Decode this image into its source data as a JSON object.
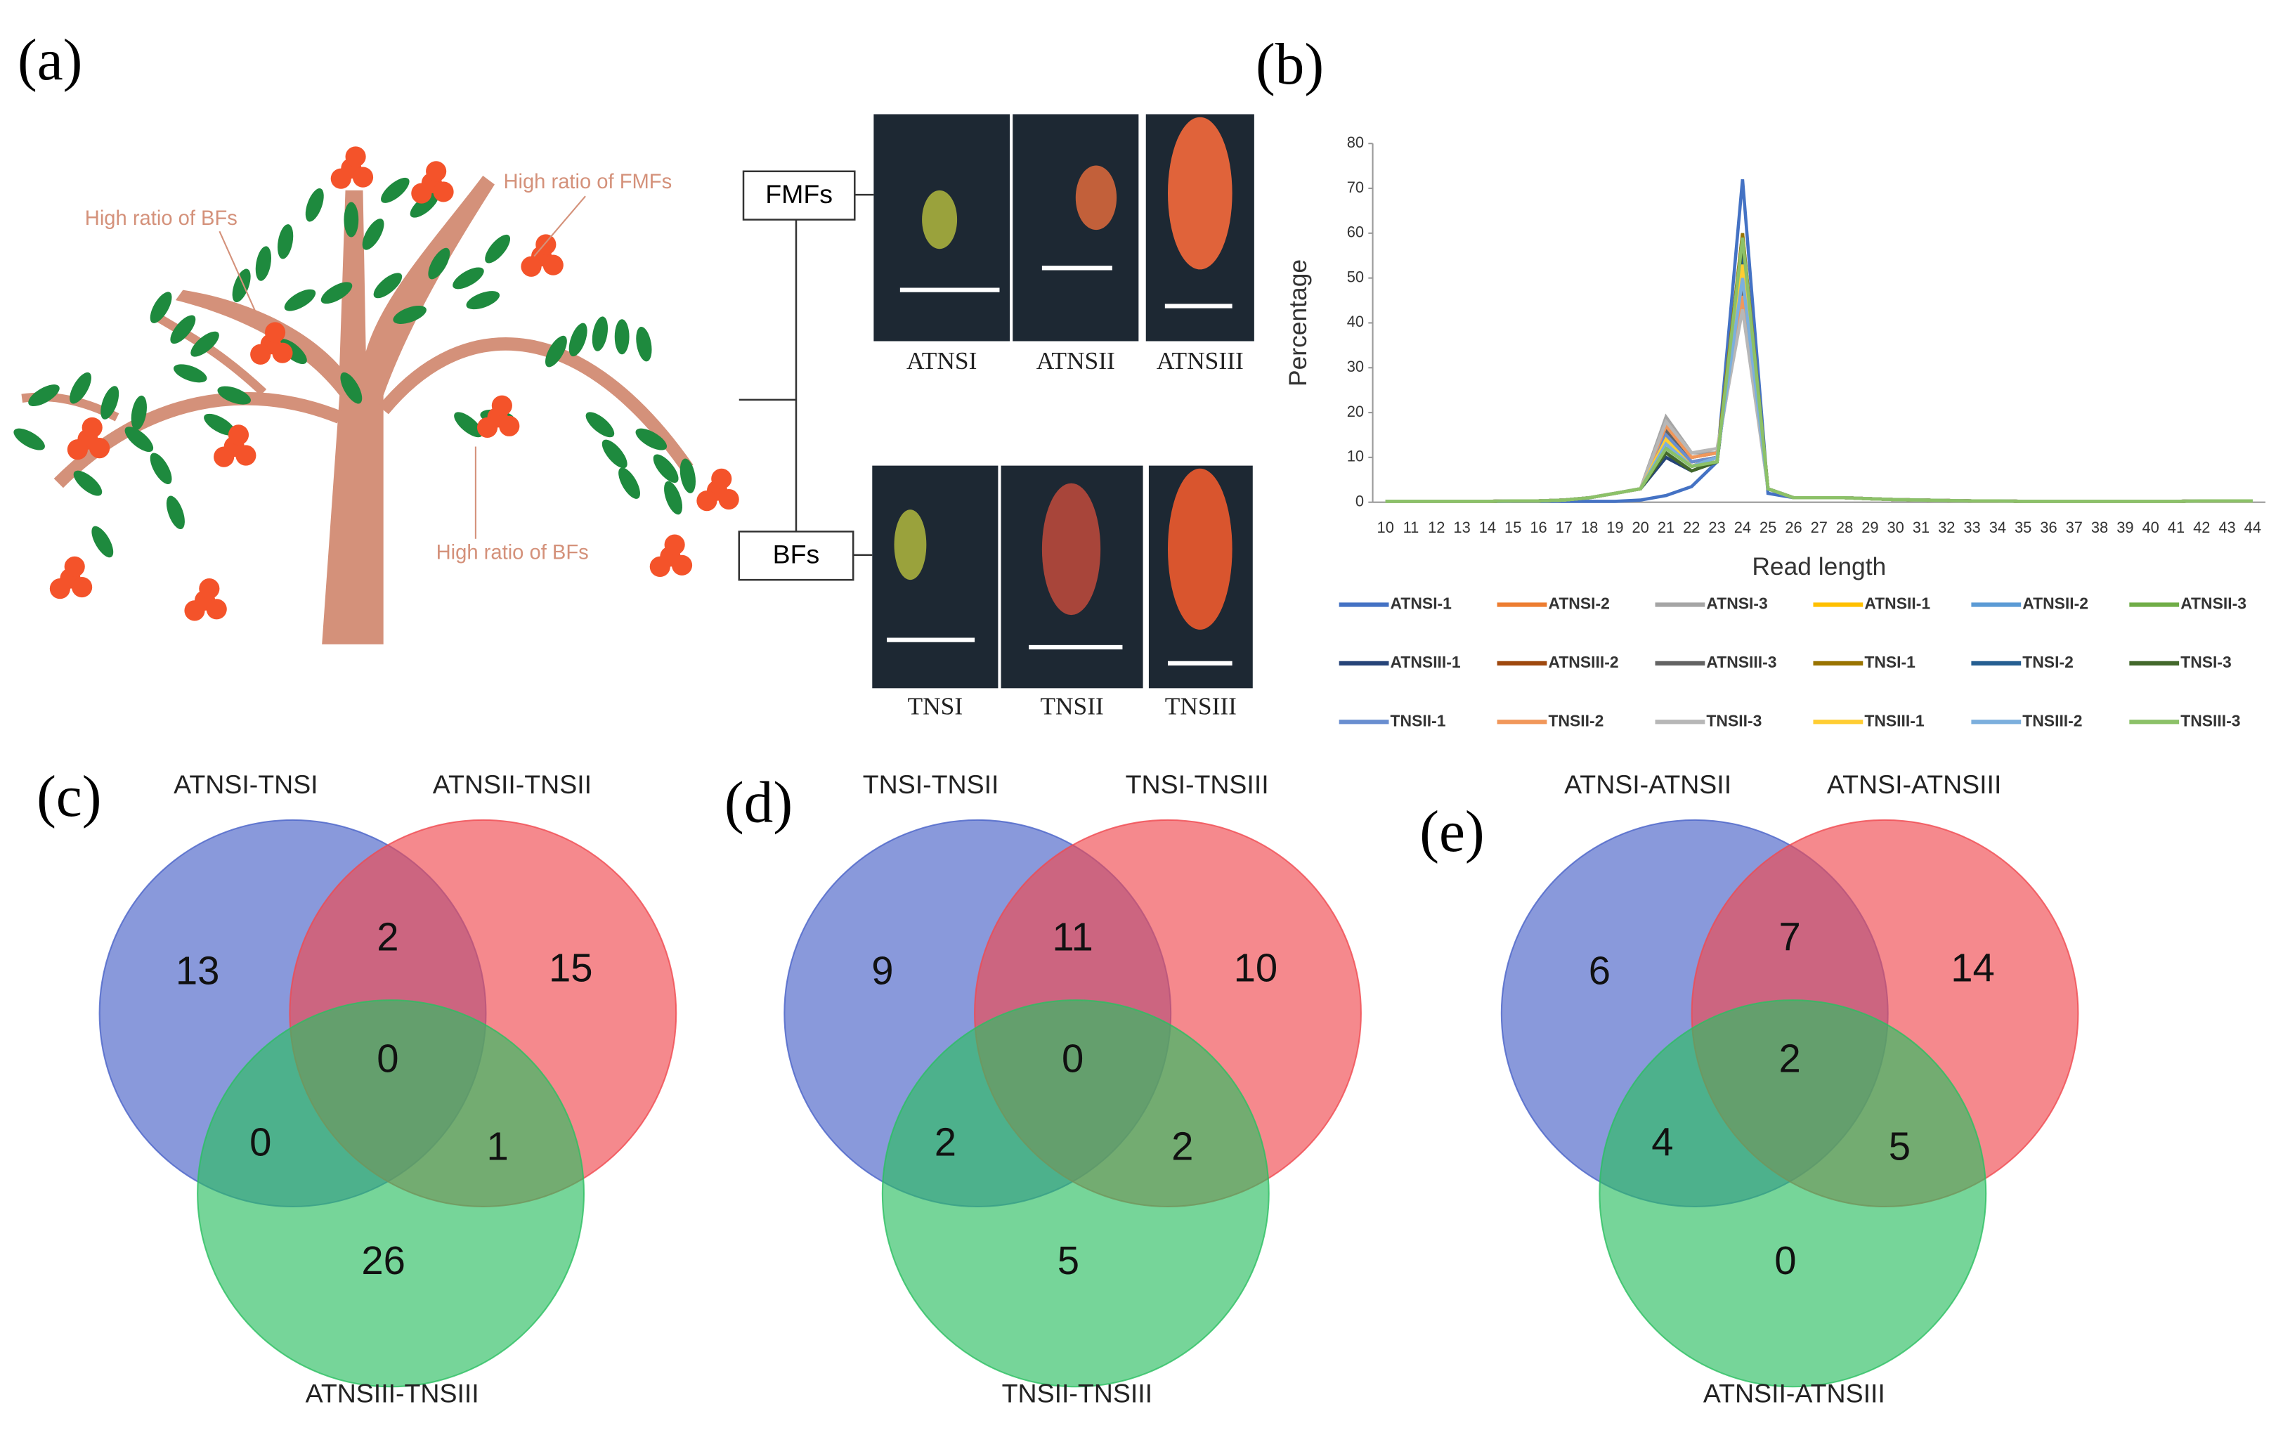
{
  "panels": [
    "(a)",
    "(b)",
    "(c)",
    "(d)",
    "(e)"
  ],
  "diagram": {
    "annotations": [
      "High ratio of BFs",
      "High ratio of FMFs",
      "High ratio of BFs"
    ],
    "groups": [
      "FMFs",
      "BFs"
    ],
    "samples": [
      [
        "ATNSI",
        "ATNSII",
        "ATNSIII"
      ],
      [
        "TNSI",
        "TNSII",
        "TNSIII"
      ]
    ]
  },
  "chart_data": [
    {
      "type": "line",
      "xlabel": "Read length",
      "ylabel": "Percentage",
      "categories": [
        10,
        11,
        12,
        13,
        14,
        15,
        16,
        17,
        18,
        19,
        20,
        21,
        22,
        23,
        24,
        25,
        26,
        27,
        28,
        29,
        30,
        31,
        32,
        33,
        34,
        35,
        36,
        37,
        38,
        39,
        40,
        41,
        42,
        43,
        44
      ],
      "ylim": [
        0,
        80
      ],
      "yticks": [
        0,
        10,
        20,
        30,
        40,
        50,
        60,
        70,
        80
      ],
      "legend": "bottom",
      "series": [
        {
          "name": "ATNSI-1",
          "color": "#4472c4",
          "values": [
            0.2,
            0.2,
            0.2,
            0.2,
            0.2,
            0.2,
            0.2,
            0.2,
            0.2,
            0.2,
            0.5,
            1.5,
            3.5,
            9,
            72,
            2,
            1,
            1,
            1,
            0.8,
            0.6,
            0.5,
            0.4,
            0.3,
            0.3,
            0.2,
            0.2,
            0.2,
            0.2,
            0.2,
            0.2,
            0.2,
            0.3,
            0.3,
            0.3
          ]
        },
        {
          "name": "ATNSI-2",
          "color": "#ed7d31",
          "values": [
            0.2,
            0.2,
            0.2,
            0.2,
            0.2,
            0.3,
            0.3,
            0.5,
            1,
            2,
            3,
            15,
            9,
            10,
            50,
            3,
            1,
            1,
            1,
            0.8,
            0.6,
            0.5,
            0.4,
            0.3,
            0.3,
            0.2,
            0.2,
            0.2,
            0.2,
            0.2,
            0.2,
            0.2,
            0.3,
            0.3,
            0.3
          ]
        },
        {
          "name": "ATNSI-3",
          "color": "#a5a5a5",
          "values": [
            0.2,
            0.2,
            0.2,
            0.2,
            0.2,
            0.3,
            0.3,
            0.5,
            1,
            2,
            3,
            19,
            11,
            11,
            45,
            3,
            1,
            1,
            1,
            0.8,
            0.6,
            0.5,
            0.4,
            0.3,
            0.3,
            0.2,
            0.2,
            0.2,
            0.2,
            0.2,
            0.2,
            0.2,
            0.3,
            0.3,
            0.3
          ]
        },
        {
          "name": "ATNSII-1",
          "color": "#ffc000",
          "values": [
            0.2,
            0.2,
            0.2,
            0.2,
            0.2,
            0.3,
            0.3,
            0.5,
            1,
            2,
            3,
            13,
            8,
            10,
            55,
            3,
            1,
            1,
            1,
            0.8,
            0.6,
            0.5,
            0.4,
            0.3,
            0.3,
            0.2,
            0.2,
            0.2,
            0.2,
            0.2,
            0.2,
            0.2,
            0.3,
            0.3,
            0.3
          ]
        },
        {
          "name": "ATNSII-2",
          "color": "#5b9bd5",
          "values": [
            0.2,
            0.2,
            0.2,
            0.2,
            0.2,
            0.3,
            0.3,
            0.5,
            1,
            2,
            3,
            12,
            8,
            10,
            57,
            3,
            1,
            1,
            1,
            0.8,
            0.6,
            0.5,
            0.4,
            0.3,
            0.3,
            0.2,
            0.2,
            0.2,
            0.2,
            0.2,
            0.2,
            0.2,
            0.3,
            0.3,
            0.3
          ]
        },
        {
          "name": "ATNSII-3",
          "color": "#70ad47",
          "values": [
            0.2,
            0.2,
            0.2,
            0.2,
            0.2,
            0.3,
            0.3,
            0.5,
            1,
            2,
            3,
            11,
            7,
            9,
            60,
            3,
            1,
            1,
            1,
            0.8,
            0.6,
            0.5,
            0.4,
            0.3,
            0.3,
            0.2,
            0.2,
            0.2,
            0.2,
            0.2,
            0.2,
            0.2,
            0.3,
            0.3,
            0.3
          ]
        },
        {
          "name": "ATNSIII-1",
          "color": "#264478",
          "values": [
            0.2,
            0.2,
            0.2,
            0.2,
            0.2,
            0.3,
            0.3,
            0.5,
            1,
            2,
            3,
            10,
            7,
            9,
            55,
            3,
            1,
            1,
            1,
            0.8,
            0.6,
            0.5,
            0.4,
            0.3,
            0.3,
            0.2,
            0.2,
            0.2,
            0.2,
            0.2,
            0.2,
            0.2,
            0.3,
            0.3,
            0.3
          ]
        },
        {
          "name": "ATNSIII-2",
          "color": "#9e480e",
          "values": [
            0.2,
            0.2,
            0.2,
            0.2,
            0.2,
            0.3,
            0.3,
            0.5,
            1,
            2,
            3,
            14,
            9,
            10,
            52,
            3,
            1,
            1,
            1,
            0.8,
            0.6,
            0.5,
            0.4,
            0.3,
            0.3,
            0.2,
            0.2,
            0.2,
            0.2,
            0.2,
            0.2,
            0.2,
            0.3,
            0.3,
            0.3
          ]
        },
        {
          "name": "ATNSIII-3",
          "color": "#636363",
          "values": [
            0.2,
            0.2,
            0.2,
            0.2,
            0.2,
            0.3,
            0.3,
            0.5,
            1,
            2,
            3,
            16,
            10,
            11,
            48,
            3,
            1,
            1,
            1,
            0.8,
            0.6,
            0.5,
            0.4,
            0.3,
            0.3,
            0.2,
            0.2,
            0.2,
            0.2,
            0.2,
            0.2,
            0.2,
            0.3,
            0.3,
            0.3
          ]
        },
        {
          "name": "TNSI-1",
          "color": "#997300",
          "values": [
            0.2,
            0.2,
            0.2,
            0.2,
            0.2,
            0.3,
            0.3,
            0.5,
            1,
            2,
            3,
            13,
            8,
            10,
            60,
            3,
            1,
            1,
            1,
            0.8,
            0.6,
            0.5,
            0.4,
            0.3,
            0.3,
            0.2,
            0.2,
            0.2,
            0.2,
            0.2,
            0.2,
            0.2,
            0.3,
            0.3,
            0.3
          ]
        },
        {
          "name": "TNSI-2",
          "color": "#255e91",
          "values": [
            0.2,
            0.2,
            0.2,
            0.2,
            0.2,
            0.3,
            0.3,
            0.5,
            1,
            2,
            3,
            12,
            8,
            9,
            56,
            3,
            1,
            1,
            1,
            0.8,
            0.6,
            0.5,
            0.4,
            0.3,
            0.3,
            0.2,
            0.2,
            0.2,
            0.2,
            0.2,
            0.2,
            0.2,
            0.3,
            0.3,
            0.3
          ]
        },
        {
          "name": "TNSI-3",
          "color": "#43682b",
          "values": [
            0.2,
            0.2,
            0.2,
            0.2,
            0.2,
            0.3,
            0.3,
            0.5,
            1,
            2,
            3,
            11,
            7,
            9,
            58,
            3,
            1,
            1,
            1,
            0.8,
            0.6,
            0.5,
            0.4,
            0.3,
            0.3,
            0.2,
            0.2,
            0.2,
            0.2,
            0.2,
            0.2,
            0.2,
            0.3,
            0.3,
            0.3
          ]
        },
        {
          "name": "TNSII-1",
          "color": "#698ed0",
          "values": [
            0.2,
            0.2,
            0.2,
            0.2,
            0.2,
            0.3,
            0.3,
            0.5,
            1,
            2,
            3,
            15,
            9,
            10,
            50,
            3,
            1,
            1,
            1,
            0.8,
            0.6,
            0.5,
            0.4,
            0.3,
            0.3,
            0.2,
            0.2,
            0.2,
            0.2,
            0.2,
            0.2,
            0.2,
            0.3,
            0.3,
            0.3
          ]
        },
        {
          "name": "TNSII-2",
          "color": "#f1975a",
          "values": [
            0.2,
            0.2,
            0.2,
            0.2,
            0.2,
            0.3,
            0.3,
            0.5,
            1,
            2,
            3,
            17,
            10,
            11,
            46,
            3,
            1,
            1,
            1,
            0.8,
            0.6,
            0.5,
            0.4,
            0.3,
            0.3,
            0.2,
            0.2,
            0.2,
            0.2,
            0.2,
            0.2,
            0.2,
            0.3,
            0.3,
            0.3
          ]
        },
        {
          "name": "TNSII-3",
          "color": "#b7b7b7",
          "values": [
            0.2,
            0.2,
            0.2,
            0.2,
            0.2,
            0.3,
            0.3,
            0.5,
            1,
            2,
            3,
            18,
            11,
            12,
            43,
            3,
            1,
            1,
            1,
            0.8,
            0.6,
            0.5,
            0.4,
            0.3,
            0.3,
            0.2,
            0.2,
            0.2,
            0.2,
            0.2,
            0.2,
            0.2,
            0.3,
            0.3,
            0.3
          ]
        },
        {
          "name": "TNSIII-1",
          "color": "#ffcd33",
          "values": [
            0.2,
            0.2,
            0.2,
            0.2,
            0.2,
            0.3,
            0.3,
            0.5,
            1,
            2,
            3,
            14,
            8,
            10,
            53,
            3,
            1,
            1,
            1,
            0.8,
            0.6,
            0.5,
            0.4,
            0.3,
            0.3,
            0.2,
            0.2,
            0.2,
            0.2,
            0.2,
            0.2,
            0.2,
            0.3,
            0.3,
            0.3
          ]
        },
        {
          "name": "TNSIII-2",
          "color": "#7cafdd",
          "values": [
            0.2,
            0.2,
            0.2,
            0.2,
            0.2,
            0.3,
            0.3,
            0.5,
            1,
            2,
            3,
            13,
            8,
            10,
            50,
            3,
            1,
            1,
            1,
            0.8,
            0.6,
            0.5,
            0.4,
            0.3,
            0.3,
            0.2,
            0.2,
            0.2,
            0.2,
            0.2,
            0.2,
            0.2,
            0.3,
            0.3,
            0.3
          ]
        },
        {
          "name": "TNSIII-3",
          "color": "#8cc168",
          "values": [
            0.2,
            0.2,
            0.2,
            0.2,
            0.2,
            0.3,
            0.3,
            0.5,
            1,
            2,
            3,
            12,
            8,
            9,
            59,
            3,
            1,
            1,
            1,
            0.8,
            0.6,
            0.5,
            0.4,
            0.3,
            0.3,
            0.2,
            0.2,
            0.2,
            0.2,
            0.2,
            0.2,
            0.2,
            0.3,
            0.3,
            0.3
          ]
        }
      ]
    },
    {
      "type": "venn",
      "sets": [
        "ATNSI-TNSI",
        "ATNSII-TNSII",
        "ATNSIII-TNSIII"
      ],
      "colors": [
        "#4a63c8",
        "#f04a50",
        "#2cbf62"
      ],
      "values": {
        "A": 13,
        "B": 15,
        "C": 26,
        "AB": 2,
        "AC": 0,
        "BC": 1,
        "ABC": 0
      }
    },
    {
      "type": "venn",
      "sets": [
        "TNSI-TNSII",
        "TNSI-TNSIII",
        "TNSII-TNSIII"
      ],
      "colors": [
        "#4a63c8",
        "#f04a50",
        "#2cbf62"
      ],
      "values": {
        "A": 9,
        "B": 10,
        "C": 5,
        "AB": 11,
        "AC": 2,
        "BC": 2,
        "ABC": 0
      }
    },
    {
      "type": "venn",
      "sets": [
        "ATNSI-ATNSII",
        "ATNSI-ATNSIII",
        "ATNSII-ATNSIII"
      ],
      "colors": [
        "#4a63c8",
        "#f04a50",
        "#2cbf62"
      ],
      "values": {
        "A": 6,
        "B": 14,
        "C": 0,
        "AB": 7,
        "AC": 4,
        "BC": 5,
        "ABC": 2
      }
    }
  ]
}
